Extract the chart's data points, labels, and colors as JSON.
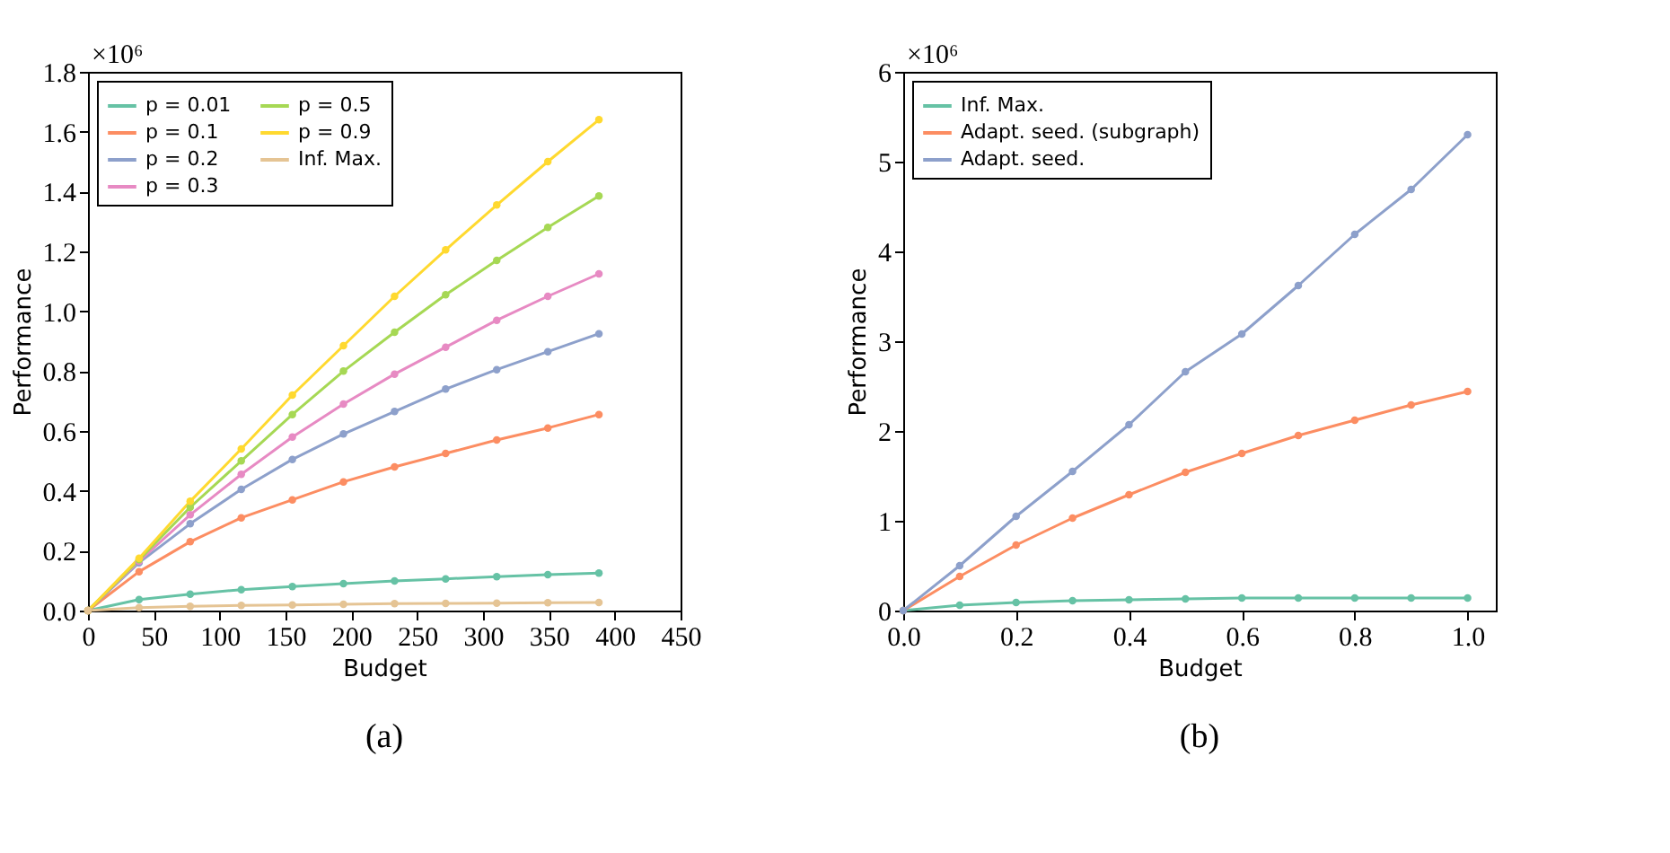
{
  "chart_data": [
    {
      "type": "line",
      "xlabel": "Budget",
      "ylabel": "Performance",
      "annotations": [
        "×10⁶",
        "(a)"
      ],
      "legend": "top left",
      "marker": "circle",
      "line_style": "solid",
      "grid": false,
      "x": [
        0,
        38.8,
        77.6,
        116.4,
        155.2,
        194,
        232.8,
        271.6,
        310.4,
        349.2,
        388
      ],
      "xlim": [
        0,
        450
      ],
      "xticks": [
        0,
        50,
        100,
        150,
        200,
        250,
        300,
        350,
        400,
        450
      ],
      "ylim": [
        0.0,
        1.8
      ],
      "yticks": [
        {
          "value": 0,
          "label": "0.0"
        },
        0.2,
        0.4,
        0.6,
        0.8,
        {
          "value": 1,
          "label": "1.0"
        },
        1.2,
        1.4,
        1.6,
        1.8
      ],
      "series": [
        {
          "name": "p = 0.01",
          "color": "#66c2a5",
          "values": [
            0,
            0.037,
            0.055,
            0.07,
            0.08,
            0.09,
            0.099,
            0.106,
            0.113,
            0.12,
            0.125
          ]
        },
        {
          "name": "p = 0.1",
          "color": "#fc8d62",
          "values": [
            0,
            0.13,
            0.23,
            0.31,
            0.37,
            0.43,
            0.48,
            0.525,
            0.57,
            0.61,
            0.655
          ]
        },
        {
          "name": "p = 0.2",
          "color": "#8da0cb",
          "values": [
            0,
            0.16,
            0.29,
            0.405,
            0.505,
            0.59,
            0.665,
            0.74,
            0.805,
            0.865,
            0.925
          ]
        },
        {
          "name": "p = 0.3",
          "color": "#e78ac3",
          "values": [
            0,
            0.165,
            0.32,
            0.455,
            0.58,
            0.69,
            0.79,
            0.88,
            0.97,
            1.05,
            1.125
          ]
        },
        {
          "name": "p = 0.5",
          "color": "#a6d854",
          "values": [
            0,
            0.17,
            0.345,
            0.5,
            0.655,
            0.8,
            0.93,
            1.055,
            1.17,
            1.28,
            1.385
          ]
        },
        {
          "name": "p = 0.9",
          "color": "#ffd92f",
          "values": [
            0,
            0.175,
            0.365,
            0.54,
            0.72,
            0.885,
            1.05,
            1.205,
            1.355,
            1.5,
            1.64
          ]
        },
        {
          "name": "Inf. Max.",
          "color": "#e5c494",
          "values": [
            0,
            0.01,
            0.014,
            0.017,
            0.019,
            0.021,
            0.023,
            0.024,
            0.025,
            0.026,
            0.027
          ]
        }
      ]
    },
    {
      "type": "line",
      "xlabel": "Budget",
      "ylabel": "Performance",
      "annotations": [
        "×10⁶",
        "(b)"
      ],
      "legend": "top left",
      "marker": "circle",
      "line_style": "solid",
      "grid": false,
      "x": [
        0.0,
        0.1,
        0.2,
        0.3,
        0.4,
        0.5,
        0.6,
        0.7,
        0.8,
        0.9,
        1.0
      ],
      "xlim": [
        0.0,
        1.05
      ],
      "xticks": [
        {
          "value": 0,
          "label": "0.0"
        },
        0.2,
        0.4,
        0.6,
        0.8,
        {
          "value": 1,
          "label": "1.0"
        }
      ],
      "ylim": [
        0,
        6
      ],
      "yticks": [
        0,
        1,
        2,
        3,
        4,
        5,
        6
      ],
      "series": [
        {
          "name": "Inf. Max.",
          "color": "#66c2a5",
          "values": [
            0,
            0.06,
            0.09,
            0.11,
            0.12,
            0.13,
            0.14,
            0.14,
            0.14,
            0.14,
            0.14
          ]
        },
        {
          "name": "Adapt. seed. (subgraph)",
          "color": "#fc8d62",
          "values": [
            0,
            0.38,
            0.73,
            1.03,
            1.29,
            1.54,
            1.75,
            1.95,
            2.12,
            2.29,
            2.44
          ]
        },
        {
          "name": "Adapt. seed.",
          "color": "#8da0cb",
          "values": [
            0,
            0.5,
            1.05,
            1.55,
            2.07,
            2.66,
            3.08,
            3.62,
            4.19,
            4.69,
            5.3
          ]
        }
      ]
    }
  ]
}
